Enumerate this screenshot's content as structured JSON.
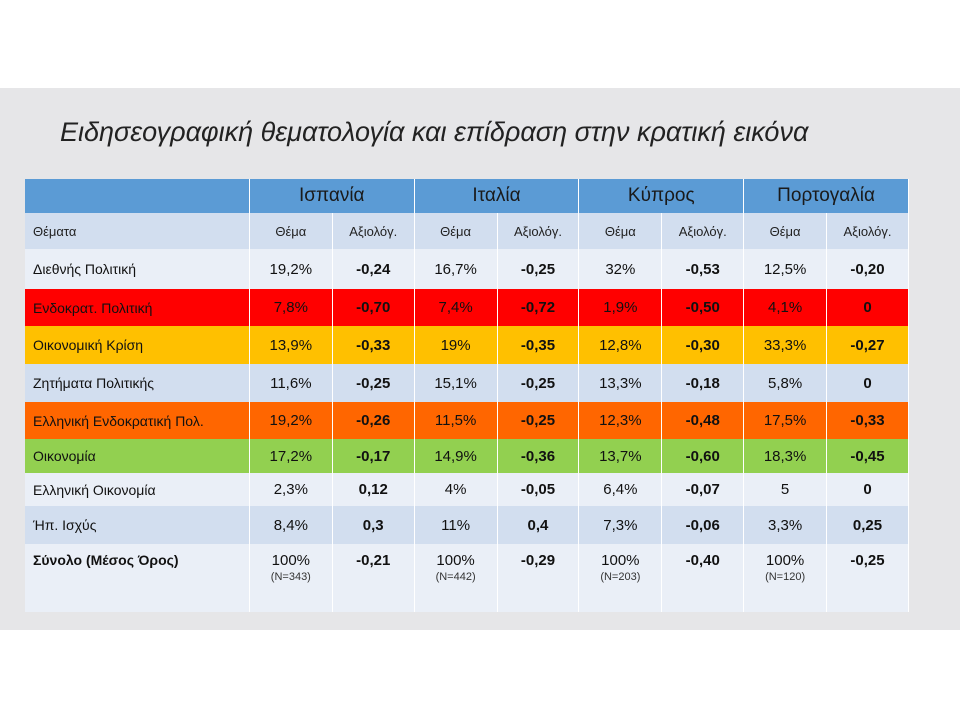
{
  "title": "Ειδησεογραφική θεματολογία και επίδραση στην κρατική εικόνα",
  "countries": [
    "Ισπανία",
    "Ιταλία",
    "Κύπρος",
    "Πορτογαλία"
  ],
  "header": {
    "topics_label": "Θέματα",
    "sub_a": "Θέμα",
    "sub_b": "Αξιολόγ."
  },
  "colors": {
    "header_blue": "#5b9bd5",
    "row_light": "#eaeff7",
    "row_dark": "#d2deef",
    "red": "#ff0000",
    "amber": "#ffc000",
    "orange": "#ff6600",
    "green": "#92d050"
  },
  "rows": [
    {
      "label": "Διεθνής Πολιτική",
      "style": "odd",
      "vals": [
        "19,2%",
        "-0,24",
        "16,7%",
        "-0,25",
        "32%",
        "-0,53",
        "12,5%",
        "-0,20"
      ]
    },
    {
      "label": "Ενδοκρατ. Πολιτική",
      "style": "red",
      "vals": [
        "7,8%",
        "-0,70",
        "7,4%",
        "-0,72",
        "1,9%",
        "-0,50",
        "4,1%",
        "0"
      ]
    },
    {
      "label": "Οικονομική Κρίση",
      "style": "amber",
      "vals": [
        "13,9%",
        "-0,33",
        "19%",
        "-0,35",
        "12,8%",
        "-0,30",
        "33,3%",
        "-0,27"
      ]
    },
    {
      "label": "Ζητήματα Πολιτικής",
      "style": "even",
      "vals": [
        "11,6%",
        "-0,25",
        "15,1%",
        "-0,25",
        "13,3%",
        "-0,18",
        "5,8%",
        "0"
      ]
    },
    {
      "label": "Ελληνική Ενδοκρατική Πολ.",
      "style": "orange",
      "vals": [
        "19,2%",
        "-0,26",
        "11,5%",
        "-0,25",
        "12,3%",
        "-0,48",
        "17,5%",
        "-0,33"
      ]
    },
    {
      "label": "Οικονομία",
      "style": "green",
      "vals": [
        "17,2%",
        "-0,17",
        "14,9%",
        "-0,36",
        "13,7%",
        "-0,60",
        "18,3%",
        "-0,45"
      ]
    },
    {
      "label": "Ελληνική Οικονομία",
      "style": "odd",
      "vals": [
        "2,3%",
        "0,12",
        "4%",
        "-0,05",
        "6,4%",
        "-0,07",
        "5",
        "0"
      ]
    },
    {
      "label": "Ήπ. Ισχύς",
      "style": "even",
      "vals": [
        "8,4%",
        "0,3",
        "11%",
        "0,4",
        "7,3%",
        "-0,06",
        "3,3%",
        "0,25"
      ]
    }
  ],
  "total": {
    "label": "Σύνολο (Μέσος Όρος)",
    "cells": [
      {
        "pct": "100%",
        "n": "(N=343)",
        "val": "-0,21"
      },
      {
        "pct": "100%",
        "n": "(N=442)",
        "val": "-0,29"
      },
      {
        "pct": "100%",
        "n": "(N=203)",
        "val": "-0,40"
      },
      {
        "pct": "100%",
        "n": "(N=120)",
        "val": "-0,25"
      }
    ]
  }
}
